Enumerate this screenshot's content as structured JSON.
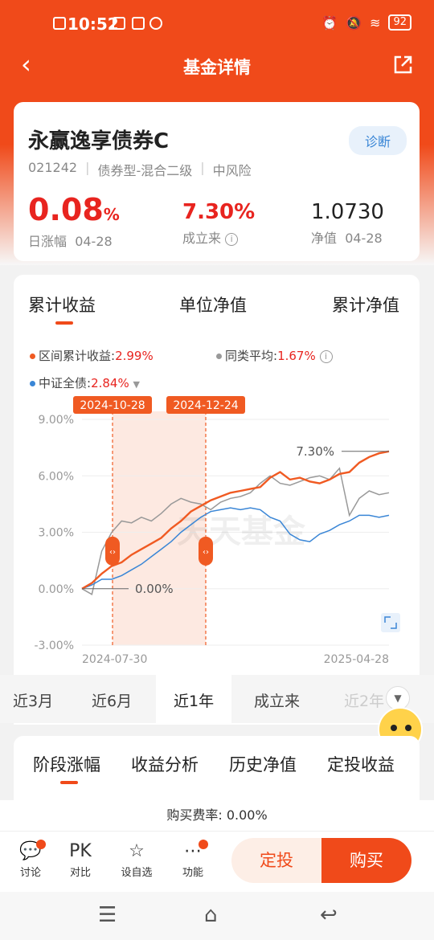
{
  "status": {
    "time": "10:52",
    "battery": "92"
  },
  "nav": {
    "title": "基金详情",
    "back_icon": "back-arrow-icon",
    "share_icon": "share-icon"
  },
  "fund": {
    "name": "永赢逸享债券C",
    "code": "021242",
    "type": "债券型-混合二级",
    "risk": "中风险",
    "diag_label": "诊断",
    "daily_change": {
      "value": "0.08",
      "unit": "%",
      "label": "日涨幅",
      "date": "04-28"
    },
    "since_inception": {
      "value": "7.30%",
      "label": "成立来"
    },
    "nav_value": {
      "value": "1.0730",
      "label": "净值",
      "date": "04-28"
    }
  },
  "chart_tabs": [
    "累计收益",
    "单位净值",
    "累计净值"
  ],
  "legend": {
    "fund": {
      "label": "区间累计收益:",
      "value": "2.99%",
      "color": "#f05a22"
    },
    "peer": {
      "label": "同类平均:",
      "value": "1.67%",
      "color": "#999999"
    },
    "index": {
      "label": "中证全债:",
      "value": "2.84%",
      "color": "#3a86d6"
    }
  },
  "chart_data": {
    "type": "line",
    "x_start": "2024-07-30",
    "x_end": "2025-04-28",
    "y_ticks": [
      "9.00%",
      "6.00%",
      "3.00%",
      "0.00%",
      "-3.00%"
    ],
    "ylim": [
      -3,
      9
    ],
    "highlight_range": [
      "2024-10-28",
      "2024-12-24"
    ],
    "annotations": {
      "end_value": "7.30%",
      "start_value": "0.00%"
    },
    "watermark": "天天基金",
    "series": [
      {
        "name": "区间累计收益",
        "color": "#f05a22",
        "values": [
          0,
          0.3,
          0.8,
          1.2,
          1.4,
          1.8,
          2.1,
          2.4,
          2.7,
          3.2,
          3.6,
          4.1,
          4.4,
          4.7,
          4.9,
          5.1,
          5.2,
          5.3,
          5.4,
          5.9,
          6.2,
          5.8,
          5.9,
          5.7,
          5.6,
          5.8,
          6.1,
          6.2,
          6.7,
          7.0,
          7.2,
          7.3
        ]
      },
      {
        "name": "同类平均",
        "color": "#999999",
        "values": [
          0,
          -0.3,
          2.0,
          3.0,
          3.6,
          3.5,
          3.8,
          3.6,
          4.0,
          4.5,
          4.8,
          4.6,
          4.5,
          4.2,
          4.6,
          4.8,
          4.9,
          5.1,
          5.6,
          6.0,
          5.6,
          5.5,
          5.7,
          5.9,
          6.0,
          5.8,
          6.4,
          3.9,
          4.8,
          5.2,
          5.0,
          5.1
        ]
      },
      {
        "name": "中证全债",
        "color": "#3a86d6",
        "values": [
          0,
          0.2,
          0.5,
          0.5,
          0.7,
          1.0,
          1.3,
          1.7,
          2.1,
          2.5,
          3.0,
          3.4,
          3.8,
          4.1,
          4.2,
          4.3,
          4.2,
          4.3,
          4.2,
          3.8,
          3.6,
          2.9,
          2.6,
          2.5,
          2.9,
          3.1,
          3.4,
          3.6,
          3.9,
          3.9,
          3.8,
          3.9
        ]
      }
    ]
  },
  "periods": [
    "近3月",
    "近6月",
    "近1年",
    "成立来",
    "近2年"
  ],
  "perf_tabs": [
    "阶段涨幅",
    "收益分析",
    "历史净值",
    "定投收益"
  ],
  "fee": "购买费率: 0.00%",
  "bottom": {
    "discuss": "讨论",
    "compare": "对比",
    "compare_icon": "PK",
    "watch": "设自选",
    "function": "功能",
    "fix_invest": "定投",
    "buy": "购买"
  }
}
